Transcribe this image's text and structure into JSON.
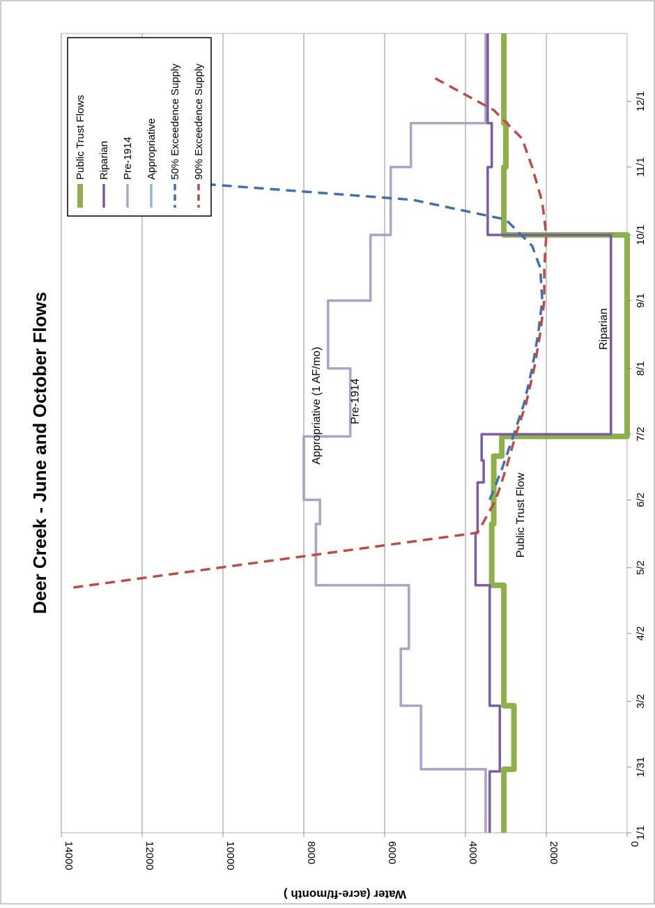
{
  "chart_data": {
    "type": "line",
    "title": "Deer Creek - June and October Flows",
    "xlabel": "",
    "ylabel": "Water (acre-ft/month )",
    "ylim": [
      0,
      14000
    ],
    "y_ticks": [
      "0",
      "2000",
      "4000",
      "6000",
      "8000",
      "10000",
      "12000",
      "14000"
    ],
    "y_tick_values": [
      0,
      2000,
      4000,
      6000,
      8000,
      10000,
      12000,
      14000
    ],
    "x_ticks": [
      "1/1",
      "1/31",
      "3/2",
      "4/2",
      "5/2",
      "6/2",
      "7/2",
      "8/1",
      "9/1",
      "10/1",
      "11/1",
      "12/1"
    ],
    "x_tick_days": [
      0,
      30,
      60,
      91,
      121,
      152,
      182,
      212,
      243,
      273,
      304,
      334
    ],
    "xlim_days": [
      0,
      365
    ],
    "grid": "horizontal gridlines at y ticks",
    "legend_placement": "top-right",
    "colors": {
      "public_trust": "#8DB04A",
      "riparian": "#7B5AA6",
      "pre1914": "#B3A2C7",
      "appropriative": "#93B6D4",
      "supply50": "#3F6FB0",
      "supply90": "#BE4B48"
    },
    "series": [
      {
        "name": "Public Trust Flows",
        "style": "solid-thick",
        "color": "#8DB04A",
        "x_days": [
          0,
          29,
          29,
          58,
          58,
          113,
          113,
          141,
          141,
          172,
          172,
          181,
          181,
          273,
          273,
          304,
          304,
          324,
          324,
          365
        ],
        "y": [
          3050,
          3050,
          2800,
          2800,
          3050,
          3050,
          3350,
          3350,
          3300,
          3300,
          3100,
          3100,
          0,
          0,
          3050,
          3050,
          3000,
          3000,
          3050,
          3050
        ]
      },
      {
        "name": "Riparian",
        "style": "solid",
        "color": "#7B5AA6",
        "x_days": [
          0,
          28,
          28,
          58,
          58,
          113,
          113,
          137,
          137,
          160,
          160,
          170,
          170,
          182,
          182,
          273,
          273,
          304,
          304,
          324,
          324,
          365
        ],
        "y": [
          3400,
          3400,
          3150,
          3150,
          3400,
          3400,
          3750,
          3750,
          3700,
          3700,
          3550,
          3550,
          3600,
          3600,
          400,
          400,
          3450,
          3450,
          3350,
          3350,
          3450,
          3450
        ]
      },
      {
        "name": "Pre-1914",
        "style": "solid",
        "color": "#B3A2C7",
        "x_days": [
          0,
          29,
          29,
          58,
          58,
          84,
          84,
          113,
          113,
          141,
          141,
          152,
          152,
          181,
          181,
          212,
          212,
          243,
          243,
          273,
          273,
          304,
          304,
          324,
          324,
          365
        ],
        "y": [
          3500,
          3500,
          5100,
          5100,
          5600,
          5600,
          5400,
          5400,
          7700,
          7700,
          7600,
          7600,
          8000,
          8000,
          6850,
          6850,
          7400,
          7400,
          6350,
          6350,
          5850,
          5850,
          5350,
          5350,
          3500,
          3500
        ]
      },
      {
        "name": "Appropriative",
        "style": "solid",
        "color": "#93B6D4",
        "x_days": [
          0,
          29,
          29,
          58,
          58,
          84,
          84,
          113,
          113,
          141,
          141,
          152,
          152,
          181,
          181,
          212,
          212,
          243,
          243,
          273,
          273,
          304,
          304,
          324,
          324,
          365
        ],
        "y": [
          3500,
          3500,
          5100,
          5100,
          5600,
          5600,
          5400,
          5400,
          7700,
          7700,
          7600,
          7600,
          8000,
          8000,
          6850,
          6850,
          7400,
          7400,
          6350,
          6350,
          5850,
          5850,
          5350,
          5350,
          3500,
          3500
        ]
      },
      {
        "name": "50% Exceedence Supply",
        "style": "dashed",
        "color": "#3F6FB0",
        "x_days": [
          152,
          166,
          182,
          196,
          212,
          228,
          243,
          258,
          268,
          280,
          289,
          297
        ],
        "y": [
          3400,
          3100,
          2800,
          2550,
          2350,
          2200,
          2100,
          2150,
          2350,
          3000,
          5300,
          11000
        ]
      },
      {
        "name": "90% Exceedence Supply",
        "style": "dashed",
        "color": "#BE4B48",
        "x_days": [
          112,
          137,
          152,
          166,
          182,
          196,
          212,
          228,
          243,
          258,
          273,
          288,
          304,
          317,
          330,
          345
        ],
        "y": [
          13700,
          3700,
          3250,
          3000,
          2750,
          2500,
          2300,
          2150,
          2050,
          2050,
          2000,
          2100,
          2350,
          2600,
          3300,
          4800
        ]
      }
    ],
    "annotations": [
      {
        "text": "Appropriative (1 AF/mo)",
        "x_day": 195,
        "y": 7600
      },
      {
        "text": "Pre-1914",
        "x_day": 197,
        "y": 6650
      },
      {
        "text": "Public Trust Flow",
        "x_day": 145,
        "y": 2550
      },
      {
        "text": "Riparian",
        "x_day": 230,
        "y": 500
      }
    ]
  }
}
